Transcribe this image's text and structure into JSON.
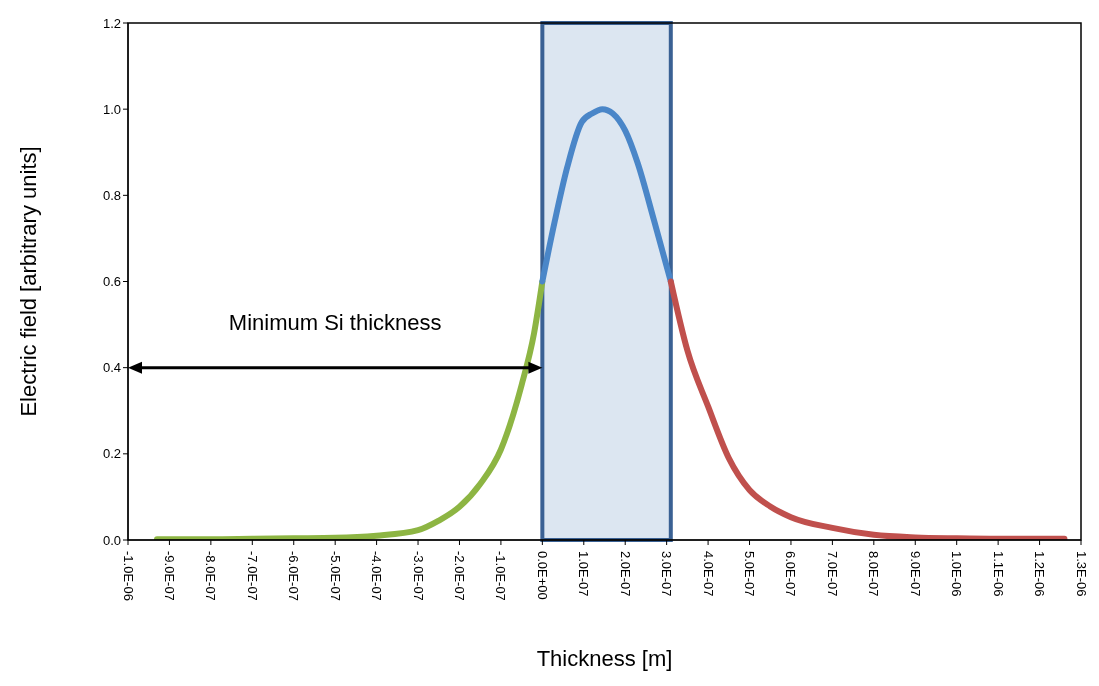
{
  "chart_data": {
    "type": "line",
    "xlabel": "Thickness [m]",
    "ylabel": "Electric field [arbitrary units]",
    "xlim": [
      -1e-06,
      1.3e-06
    ],
    "xticks": [
      {
        "value": -1e-06,
        "label": "-1.0E-06"
      },
      {
        "value": -9e-07,
        "label": "-9.0E-07"
      },
      {
        "value": -8e-07,
        "label": "-8.0E-07"
      },
      {
        "value": -7e-07,
        "label": "-7.0E-07"
      },
      {
        "value": -6e-07,
        "label": "-6.0E-07"
      },
      {
        "value": -5e-07,
        "label": "-5.0E-07"
      },
      {
        "value": -4e-07,
        "label": "-4.0E-07"
      },
      {
        "value": -3e-07,
        "label": "-3.0E-07"
      },
      {
        "value": -2e-07,
        "label": "-2.0E-07"
      },
      {
        "value": -1e-07,
        "label": "-1.0E-07"
      },
      {
        "value": 0,
        "label": "0.0E+00"
      },
      {
        "value": 1e-07,
        "label": "1.0E-07"
      },
      {
        "value": 2e-07,
        "label": "2.0E-07"
      },
      {
        "value": 3e-07,
        "label": "3.0E-07"
      },
      {
        "value": 4e-07,
        "label": "4.0E-07"
      },
      {
        "value": 5e-07,
        "label": "5.0E-07"
      },
      {
        "value": 6e-07,
        "label": "6.0E-07"
      },
      {
        "value": 7e-07,
        "label": "7.0E-07"
      },
      {
        "value": 8e-07,
        "label": "8.0E-07"
      },
      {
        "value": 9e-07,
        "label": "9.0E-07"
      },
      {
        "value": 1e-06,
        "label": "1.0E-06"
      },
      {
        "value": 1.1e-06,
        "label": "1.1E-06"
      },
      {
        "value": 1.2e-06,
        "label": "1.2E-06"
      },
      {
        "value": 1.3e-06,
        "label": "1.3E-06"
      }
    ],
    "ylim": [
      0,
      1.2
    ],
    "yticks": [
      {
        "value": 0,
        "label": "0.0"
      },
      {
        "value": 0.2,
        "label": "0.2"
      },
      {
        "value": 0.4,
        "label": "0.4"
      },
      {
        "value": 0.6,
        "label": "0.6"
      },
      {
        "value": 0.8,
        "label": "0.8"
      },
      {
        "value": 1.0,
        "label": "1.0"
      },
      {
        "value": 1.2,
        "label": "1.2"
      }
    ],
    "marker": "none",
    "line_style": "solid",
    "bands": [
      {
        "axis": "x",
        "from": 0,
        "to": 3.1e-07,
        "color": "#dce6f1"
      }
    ],
    "annotations": [
      "Minimum Si thickness"
    ],
    "series": [
      {
        "color": "#8db543",
        "x": [
          -9.3e-07,
          -8e-07,
          -7e-07,
          -6e-07,
          -5e-07,
          -4e-07,
          -3e-07,
          -2.5e-07,
          -2e-07,
          -1.5e-07,
          -1e-07,
          -5e-08,
          -2e-08,
          0
        ],
        "values": [
          0.002,
          0.002,
          0.003,
          0.004,
          0.005,
          0.01,
          0.023,
          0.045,
          0.077,
          0.13,
          0.21,
          0.36,
          0.48,
          0.6
        ]
      },
      {
        "color": "#4a86c8",
        "x": [
          0,
          3e-08,
          6e-08,
          9.5e-08,
          1.2e-07,
          1.45e-07,
          1.7e-07,
          2e-07,
          2.3e-07,
          2.7e-07,
          3.1e-07
        ],
        "values": [
          0.6,
          0.74,
          0.865,
          0.97,
          0.99,
          1.0,
          0.99,
          0.95,
          0.875,
          0.74,
          0.6
        ]
      },
      {
        "color": "#c0504d",
        "x": [
          3.1e-07,
          3.5e-07,
          4e-07,
          4.5e-07,
          5e-07,
          5.5e-07,
          6e-07,
          7e-07,
          8e-07,
          9e-07,
          1e-06,
          1.1e-06,
          1.26e-06
        ],
        "values": [
          0.6,
          0.44,
          0.31,
          0.19,
          0.116,
          0.078,
          0.053,
          0.028,
          0.012,
          0.006,
          0.004,
          0.003,
          0.003
        ]
      }
    ]
  }
}
